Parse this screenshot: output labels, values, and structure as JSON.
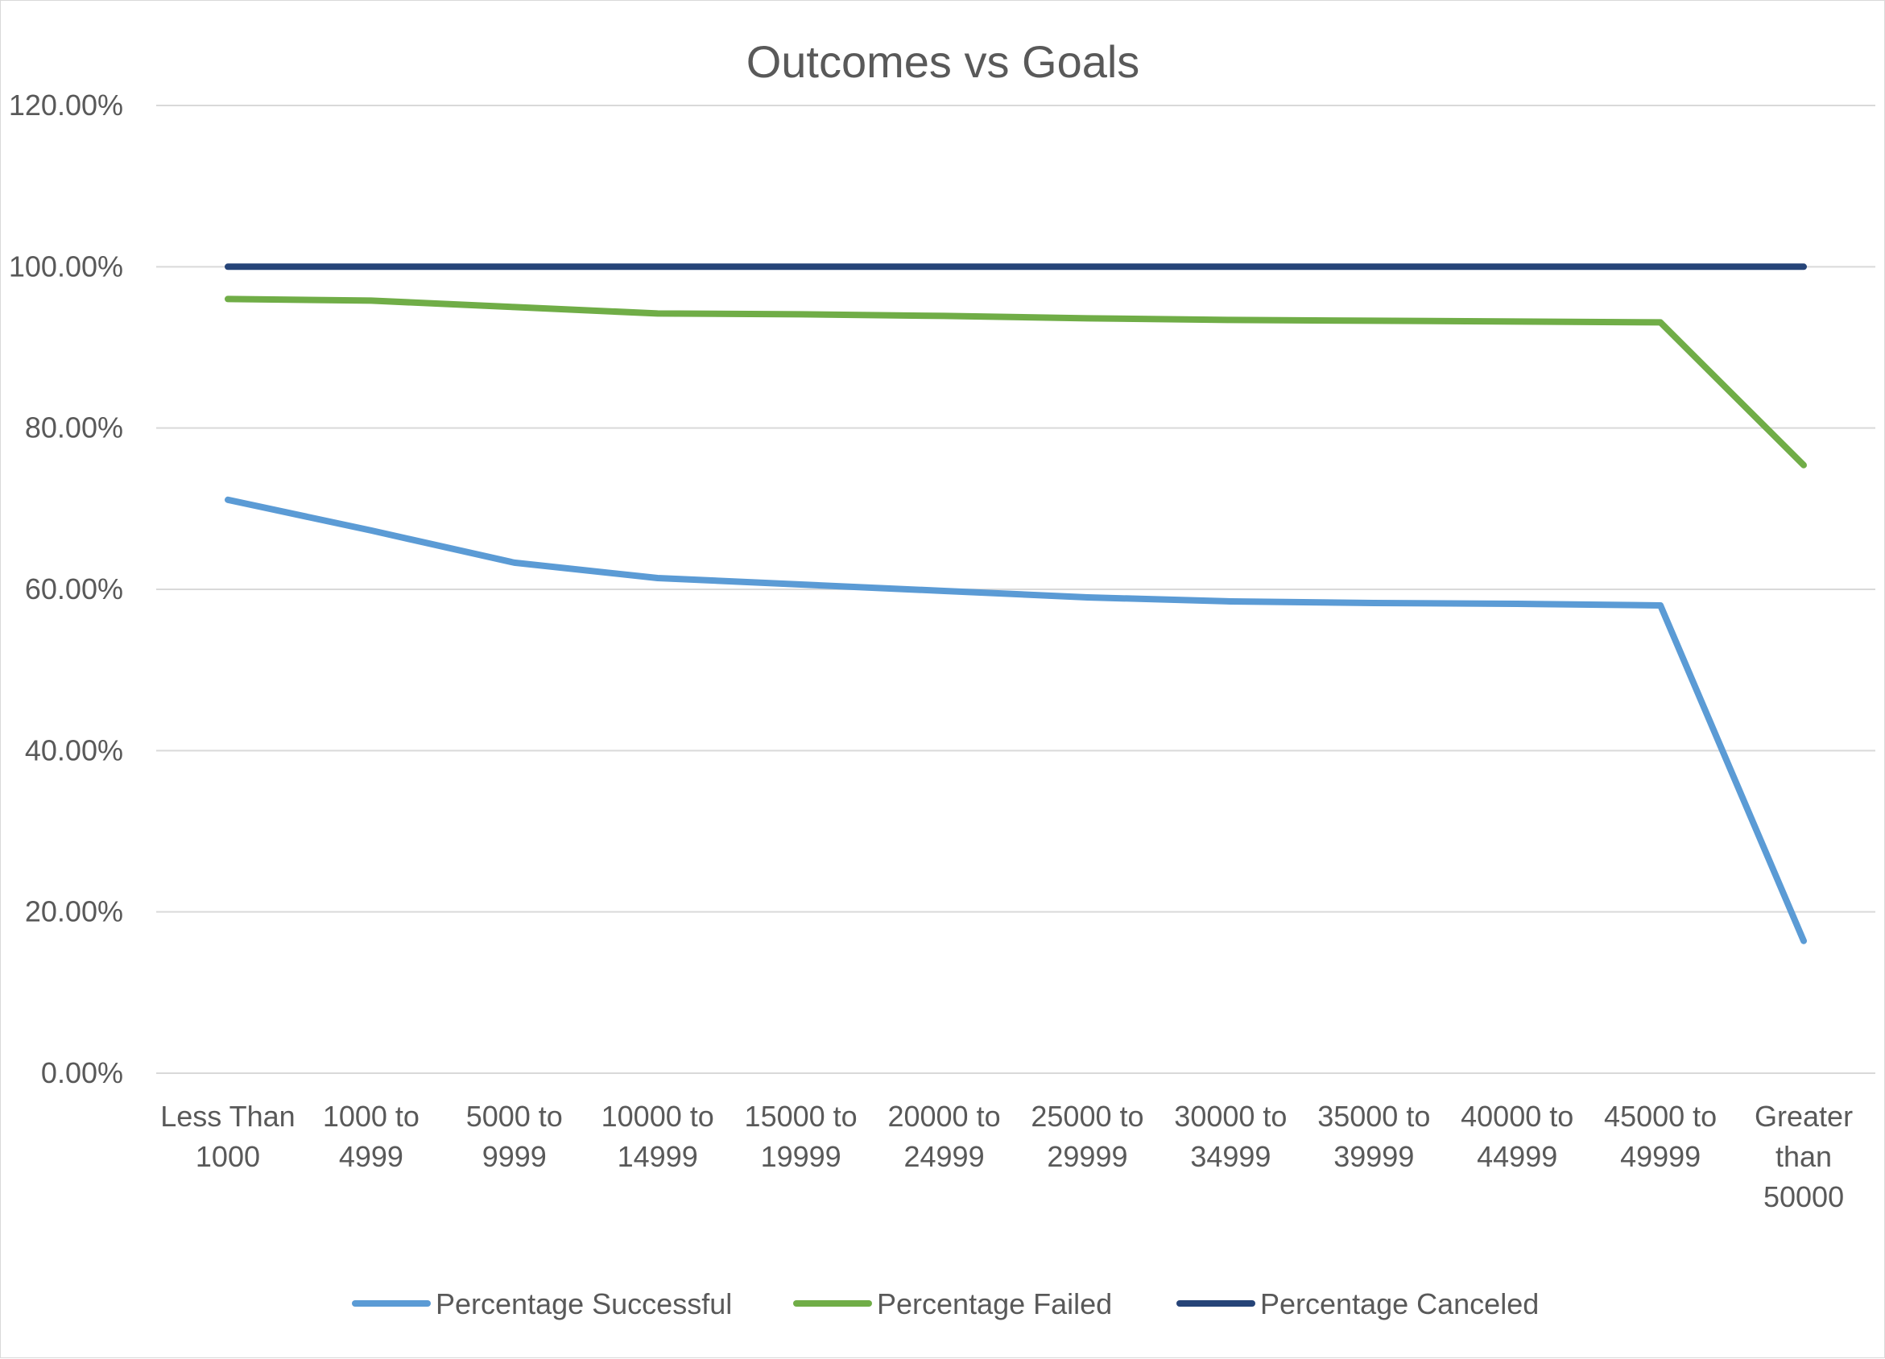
{
  "chart_data": {
    "type": "line",
    "title": "Outcomes vs Goals",
    "xlabel": "",
    "ylabel": "",
    "categories": [
      [
        "Less Than",
        "1000"
      ],
      [
        "1000 to",
        "4999"
      ],
      [
        "5000 to",
        "9999"
      ],
      [
        "10000 to",
        "14999"
      ],
      [
        "15000 to",
        "19999"
      ],
      [
        "20000 to",
        "24999"
      ],
      [
        "25000 to",
        "29999"
      ],
      [
        "30000 to",
        "34999"
      ],
      [
        "35000 to",
        "39999"
      ],
      [
        "40000 to",
        "44999"
      ],
      [
        "45000 to",
        "49999"
      ],
      [
        "Greater",
        "than",
        "50000"
      ]
    ],
    "ylim": [
      0,
      120
    ],
    "yticks": [
      0,
      20,
      40,
      60,
      80,
      100,
      120
    ],
    "ytick_labels": [
      "0.00%",
      "20.00%",
      "40.00%",
      "60.00%",
      "80.00%",
      "100.00%",
      "120.00%"
    ],
    "grid": "horizontal",
    "legend_position": "bottom",
    "series": [
      {
        "name": "Percentage Successful",
        "color": "#5b9bd5",
        "values": [
          71.1,
          67.3,
          63.3,
          61.4,
          60.6,
          59.8,
          59.0,
          58.5,
          58.3,
          58.2,
          58.0,
          16.4
        ]
      },
      {
        "name": "Percentage Failed",
        "color": "#70ad47",
        "values": [
          96.0,
          95.8,
          95.0,
          94.2,
          94.1,
          93.9,
          93.6,
          93.4,
          93.3,
          93.2,
          93.1,
          75.4
        ]
      },
      {
        "name": "Percentage Canceled",
        "color": "#264478",
        "values": [
          100.0,
          100.0,
          100.0,
          100.0,
          100.0,
          100.0,
          100.0,
          100.0,
          100.0,
          100.0,
          100.0,
          100.0
        ]
      }
    ]
  }
}
